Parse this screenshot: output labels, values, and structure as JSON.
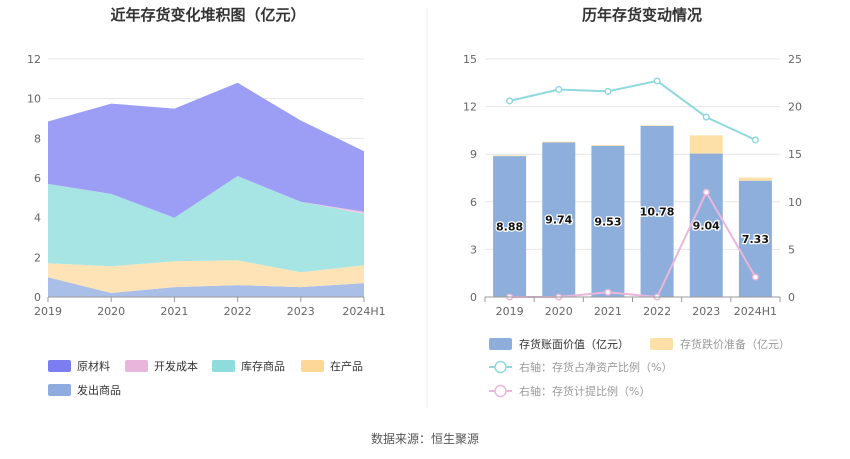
{
  "source_text": "数据来源：恒生聚源",
  "chart_data": [
    {
      "type": "area",
      "stacked": true,
      "title": "近年存货变化堆积图（亿元）",
      "categories": [
        "2019",
        "2020",
        "2021",
        "2022",
        "2023",
        "2024H1"
      ],
      "y_ticks": [
        "0",
        "2",
        "4",
        "6",
        "8",
        "10",
        "12"
      ],
      "ylim": [
        0,
        12
      ],
      "series": [
        {
          "name": "发出商品",
          "color": "#a9bfe8",
          "values": [
            1.0,
            0.2,
            0.5,
            0.6,
            0.5,
            0.7
          ]
        },
        {
          "name": "在产品",
          "color": "#fde3b6",
          "values": [
            0.7,
            1.35,
            1.3,
            1.25,
            0.75,
            0.9
          ]
        },
        {
          "name": "库存商品",
          "color": "#a7e4e4",
          "values": [
            4.0,
            3.65,
            2.2,
            4.25,
            3.55,
            2.6
          ]
        },
        {
          "name": "开发成本",
          "color": "#efc5e2",
          "values": [
            0.0,
            0.0,
            0.0,
            0.0,
            0.0,
            0.1
          ]
        },
        {
          "name": "原材料",
          "color": "#9c9ef5",
          "values": [
            3.15,
            4.55,
            5.5,
            4.7,
            4.1,
            3.05
          ]
        }
      ],
      "legend": [
        {
          "label": "原材料",
          "color": "#7b7df0"
        },
        {
          "label": "开发成本",
          "color": "#e8b6db"
        },
        {
          "label": "库存商品",
          "color": "#8fdcdc"
        },
        {
          "label": "在产品",
          "color": "#fcd797"
        },
        {
          "label": "发出商品",
          "color": "#8fabdf"
        }
      ],
      "legend_position": "bottom"
    },
    {
      "type": "bar",
      "stacked": true,
      "title": "历年存货变动情况",
      "categories": [
        "2019",
        "2020",
        "2021",
        "2022",
        "2023",
        "2024H1"
      ],
      "y_ticks_left": [
        "0",
        "3",
        "6",
        "9",
        "12",
        "15"
      ],
      "y_ticks_right": [
        "0",
        "5",
        "10",
        "15",
        "20",
        "25"
      ],
      "ylim_left": [
        0,
        15
      ],
      "ylim_right": [
        0,
        25
      ],
      "bars": [
        {
          "name": "存货账面价值（亿元）",
          "color": "#8eaedb",
          "values": [
            8.88,
            9.74,
            9.53,
            10.78,
            9.04,
            7.33
          ]
        },
        {
          "name": "存货跌价准备（亿元）",
          "color": "#fde0a8",
          "values": [
            0.05,
            0.05,
            0.05,
            0.05,
            1.15,
            0.2
          ]
        }
      ],
      "bar_labels": [
        "8.88",
        "9.74",
        "9.53",
        "10.78",
        "9.04",
        "7.33"
      ],
      "lines": [
        {
          "name": "右轴：存货占净资产比例（%）",
          "color": "#8ed8de",
          "values": [
            20.6,
            21.8,
            21.6,
            22.7,
            18.9,
            16.5
          ]
        },
        {
          "name": "右轴：存货计提比例（%）",
          "color": "#eab7da",
          "values": [
            0.0,
            0.0,
            0.5,
            0.0,
            11.0,
            2.1
          ]
        }
      ],
      "legend_position": "bottom"
    }
  ]
}
